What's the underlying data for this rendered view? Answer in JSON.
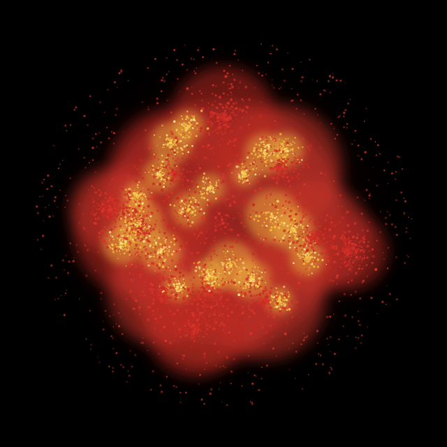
{
  "image": {
    "subject": "particle-nebula",
    "colors": {
      "background": "#000000",
      "glow": "#2a0606",
      "outer_particles": "#d8342a",
      "inner_particles": "#c42a22",
      "hot_particles": "#f2c040",
      "spark_particles": "#ffe38a"
    }
  }
}
